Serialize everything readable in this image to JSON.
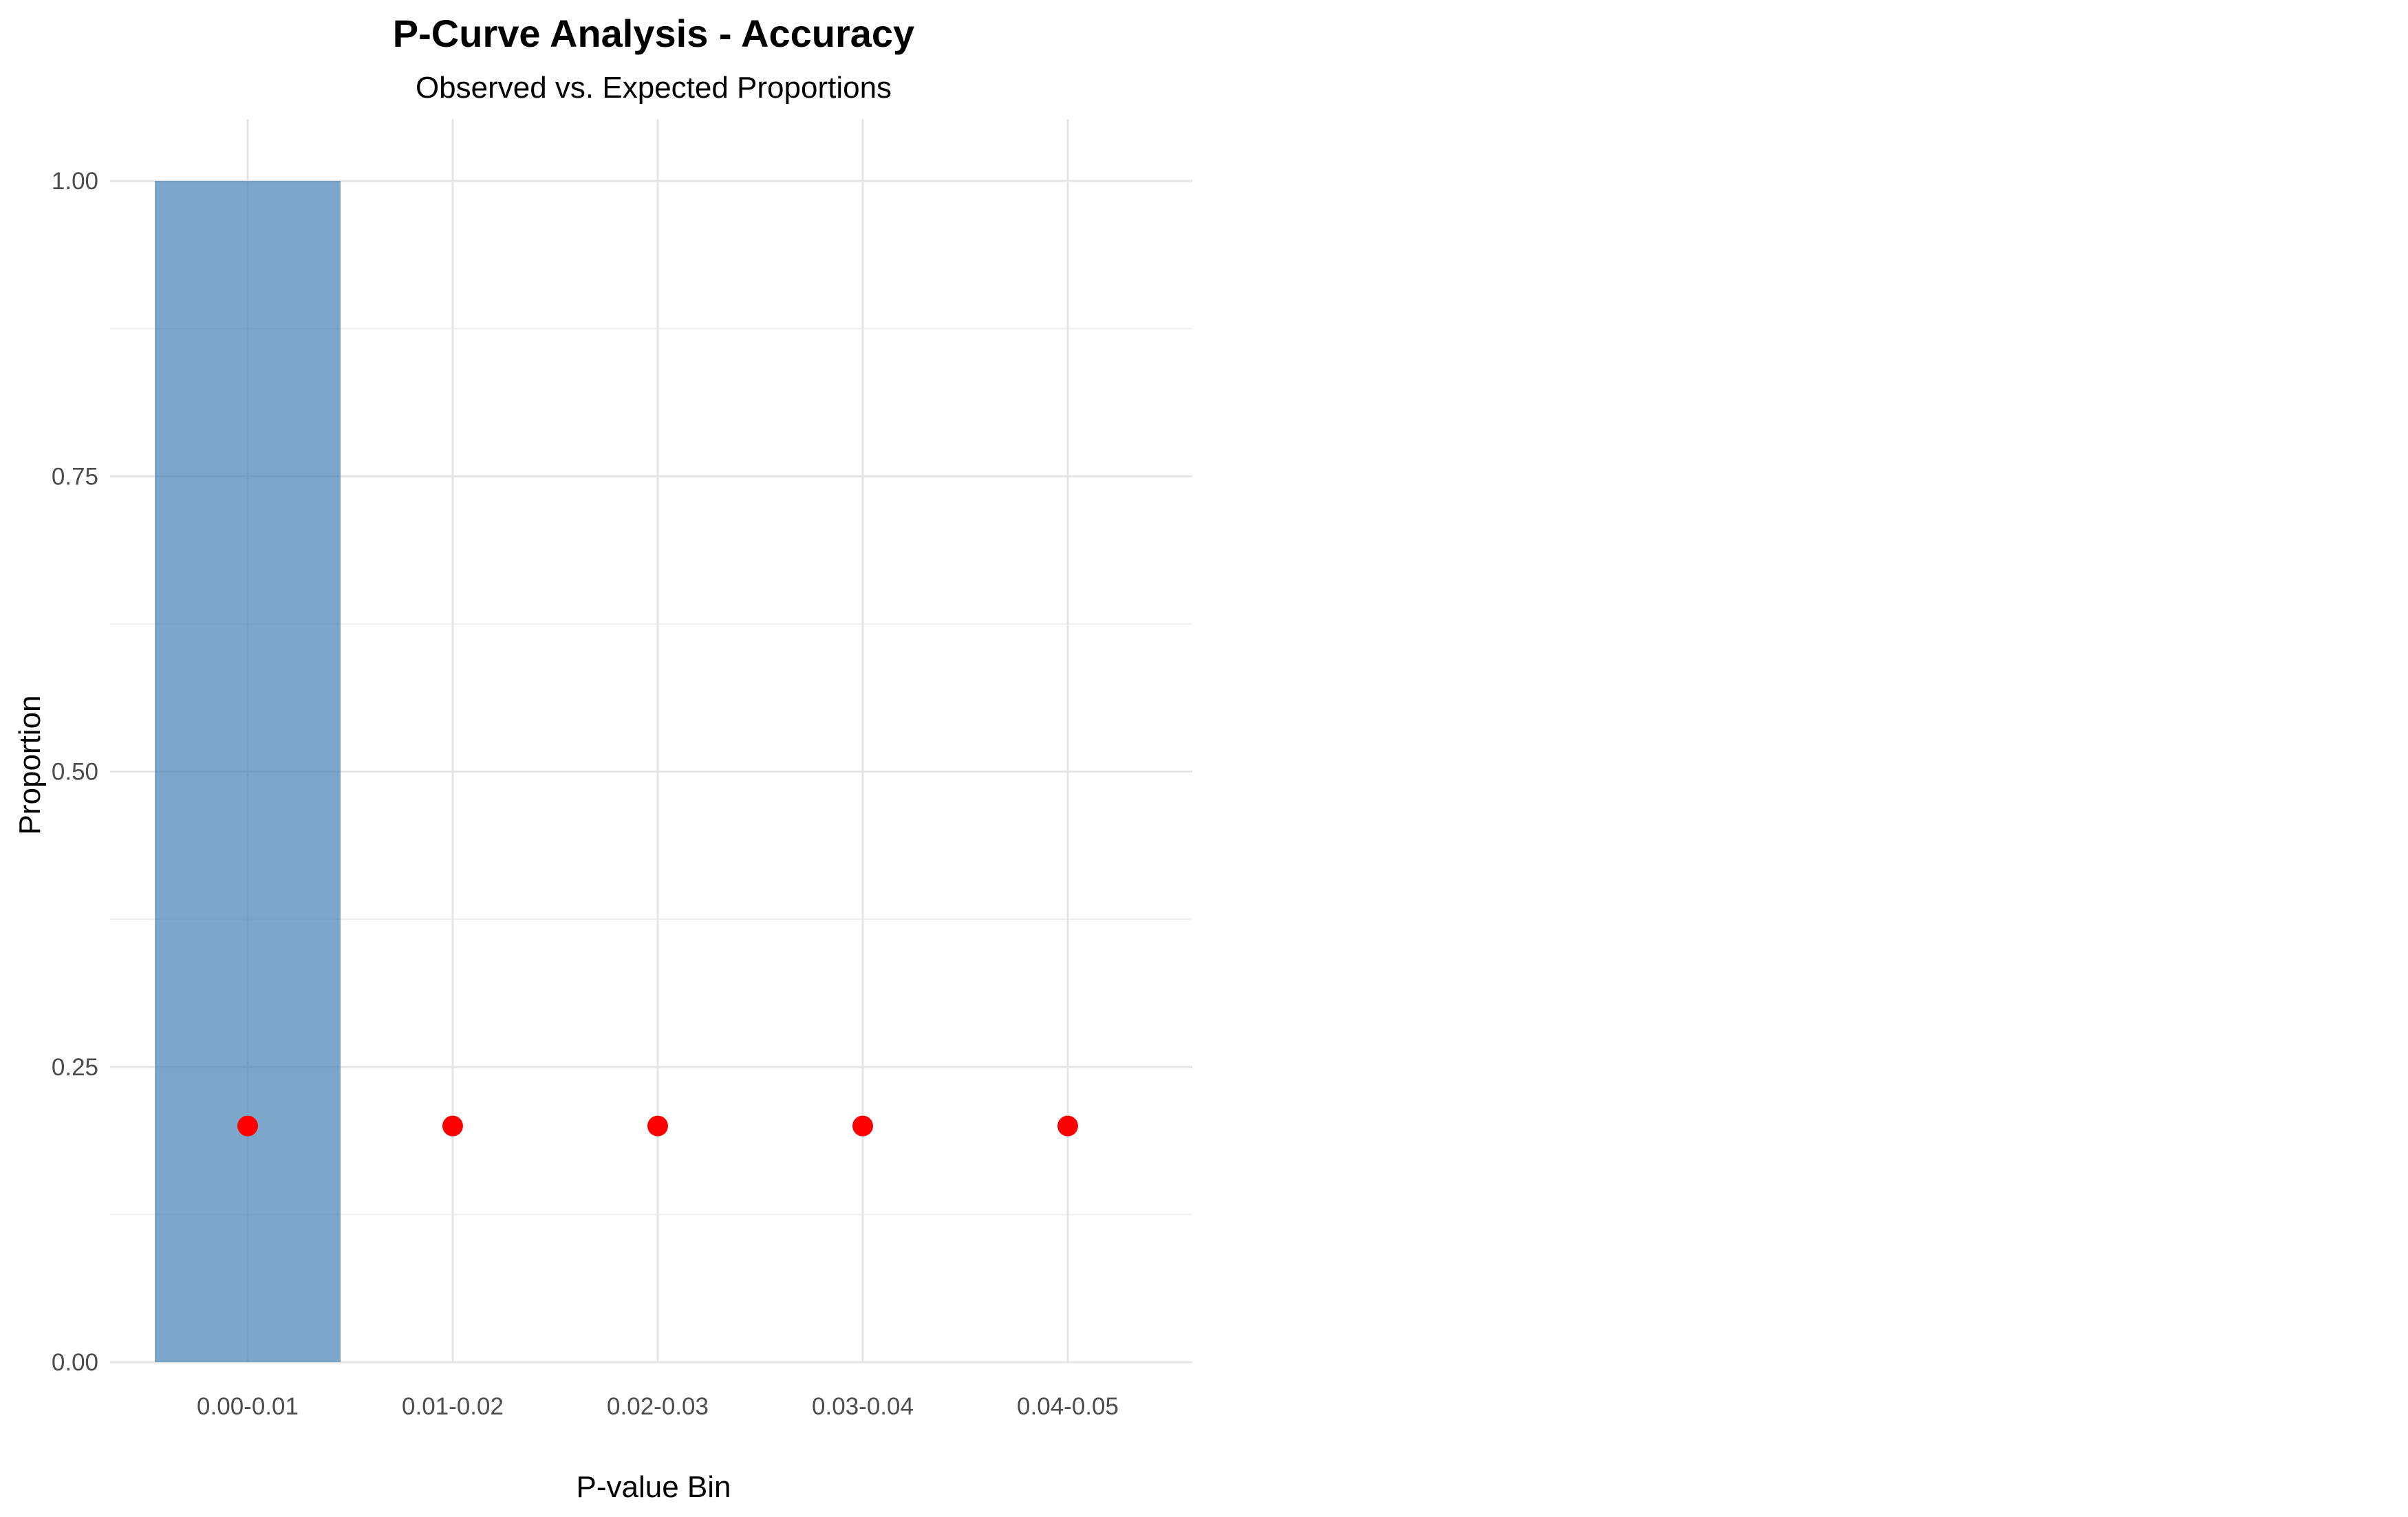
{
  "chart_data": {
    "type": "bar",
    "title": "P-Curve Analysis - Accuracy",
    "subtitle": "Observed vs. Expected Proportions",
    "xlabel": "P-value Bin",
    "ylabel": "Proportion",
    "categories": [
      "0.00-0.01",
      "0.01-0.02",
      "0.02-0.03",
      "0.03-0.04",
      "0.04-0.05"
    ],
    "series": [
      {
        "type": "bar",
        "values": [
          1.0,
          0,
          0,
          0,
          0
        ],
        "color": "#4682B4"
      },
      {
        "type": "point",
        "values": [
          0.2,
          0.2,
          0.2,
          0.2,
          0.2
        ],
        "color": "#FF0000"
      }
    ],
    "ylim": [
      0,
      1
    ],
    "yticks": [
      0,
      0.25,
      0.5,
      0.75,
      1.0
    ],
    "ytick_labels": [
      "0.00",
      "0.25",
      "0.50",
      "0.75",
      "1.00"
    ],
    "grid": true,
    "legend": "none"
  }
}
